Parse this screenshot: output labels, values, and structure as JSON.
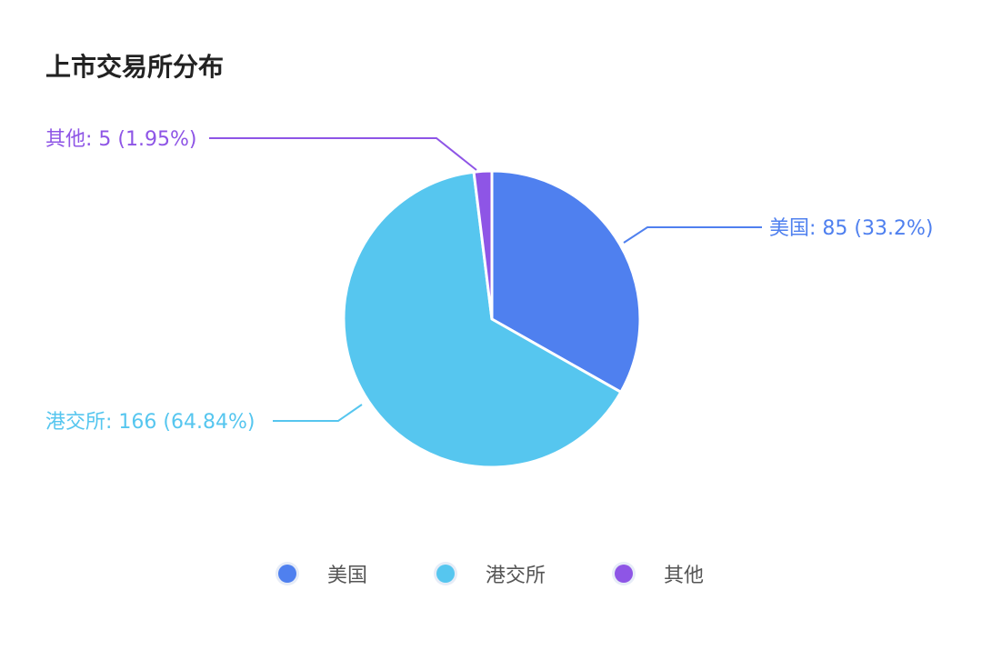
{
  "chart_data": {
    "type": "pie",
    "title": "上市交易所分布",
    "slices": [
      {
        "name": "美国",
        "value": 85,
        "percent": "33.2%",
        "label": "美国: 85 (33.2%)",
        "color": "#4f80ef"
      },
      {
        "name": "港交所",
        "value": 166,
        "percent": "64.84%",
        "label": "港交所: 166 (64.84%)",
        "color": "#56c6ef"
      },
      {
        "name": "其他",
        "value": 5,
        "percent": "1.95%",
        "label": "其他: 5 (1.95%)",
        "color": "#8e55e6"
      }
    ],
    "legend": {
      "position": "bottom",
      "items": [
        "美国",
        "港交所",
        "其他"
      ]
    },
    "start_angle": "top",
    "direction": "clockwise"
  }
}
